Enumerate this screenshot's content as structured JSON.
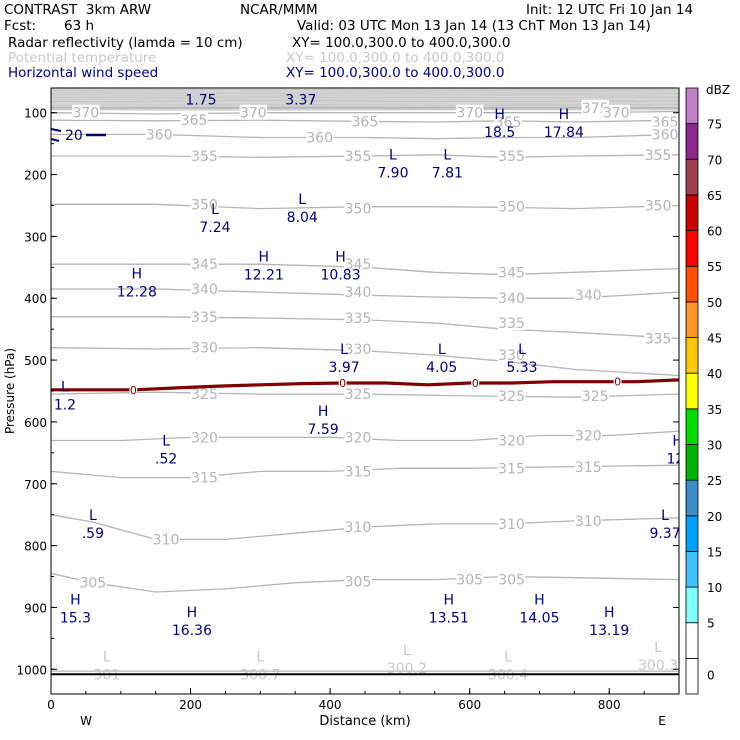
{
  "header": {
    "model": "CONTRAST  3km ARW",
    "org": "NCAR/MMM",
    "init": "Init: 12 UTC Fri 10 Jan 14",
    "fcst_label": "Fcst:",
    "fcst_value": "63 h",
    "valid": "Valid: 03 UTC Mon 13 Jan 14 (13 ChT Mon 13 Jan 14)",
    "fields": [
      {
        "name": "Radar reflectivity (lamda = 10 cm)",
        "xy": "XY= 100.0,300.0 to 400.0,300.0",
        "color": "#000000"
      },
      {
        "name": "Potential temperature",
        "xy": "XY= 100.0,300.0 to 400.0,300.0",
        "color": "#c8c8c8"
      },
      {
        "name": "Horizontal wind speed",
        "xy": "XY= 100.0,300.0 to 400.0,300.0",
        "color": "#000080"
      }
    ]
  },
  "chart_data": {
    "type": "cross-section",
    "xlabel": "Distance (km)",
    "ylabel": "Pressure (hPa)",
    "xlim": [
      0,
      900
    ],
    "ylim": [
      1040,
      60
    ],
    "xticks": [
      0,
      200,
      400,
      600,
      800
    ],
    "yticks": [
      100,
      200,
      300,
      400,
      500,
      600,
      700,
      800,
      900,
      1000
    ],
    "x_end_labels": {
      "left": "W",
      "right": "E"
    },
    "theta_contours": [
      {
        "value": 301,
        "points": [
          [
            0,
            1003
          ],
          [
            150,
            1003
          ],
          [
            300,
            1003
          ],
          [
            450,
            1003
          ],
          [
            600,
            1003
          ],
          [
            750,
            1003
          ],
          [
            900,
            1003
          ]
        ]
      },
      {
        "value": 305,
        "points": [
          [
            0,
            845
          ],
          [
            60,
            860
          ],
          [
            150,
            875
          ],
          [
            250,
            870
          ],
          [
            350,
            860
          ],
          [
            450,
            855
          ],
          [
            550,
            855
          ],
          [
            650,
            850
          ],
          [
            750,
            852
          ],
          [
            900,
            855
          ]
        ]
      },
      {
        "value": 310,
        "points": [
          [
            0,
            750
          ],
          [
            60,
            762
          ],
          [
            150,
            790
          ],
          [
            250,
            790
          ],
          [
            350,
            780
          ],
          [
            450,
            770
          ],
          [
            550,
            765
          ],
          [
            650,
            765
          ],
          [
            750,
            760
          ],
          [
            900,
            755
          ]
        ]
      },
      {
        "value": 315,
        "points": [
          [
            0,
            680
          ],
          [
            100,
            690
          ],
          [
            200,
            690
          ],
          [
            300,
            680
          ],
          [
            400,
            680
          ],
          [
            500,
            675
          ],
          [
            600,
            675
          ],
          [
            700,
            673
          ],
          [
            900,
            670
          ]
        ]
      },
      {
        "value": 320,
        "points": [
          [
            0,
            630
          ],
          [
            100,
            630
          ],
          [
            200,
            625
          ],
          [
            300,
            625
          ],
          [
            400,
            625
          ],
          [
            500,
            630
          ],
          [
            600,
            630
          ],
          [
            700,
            622
          ],
          [
            800,
            622
          ],
          [
            900,
            615
          ]
        ]
      },
      {
        "value": 325,
        "points": [
          [
            0,
            555
          ],
          [
            150,
            552
          ],
          [
            300,
            555
          ],
          [
            450,
            555
          ],
          [
            600,
            558
          ],
          [
            750,
            560
          ],
          [
            900,
            555
          ]
        ]
      },
      {
        "value": 330,
        "points": [
          [
            0,
            480
          ],
          [
            150,
            482
          ],
          [
            300,
            480
          ],
          [
            450,
            485
          ],
          [
            550,
            492
          ],
          [
            650,
            502
          ],
          [
            750,
            515
          ],
          [
            900,
            525
          ]
        ]
      },
      {
        "value": 335,
        "points": [
          [
            0,
            430
          ],
          [
            150,
            430
          ],
          [
            300,
            432
          ],
          [
            450,
            435
          ],
          [
            550,
            440
          ],
          [
            650,
            450
          ],
          [
            750,
            455
          ],
          [
            900,
            465
          ]
        ]
      },
      {
        "value": 340,
        "points": [
          [
            0,
            385
          ],
          [
            150,
            385
          ],
          [
            300,
            390
          ],
          [
            450,
            395
          ],
          [
            550,
            398
          ],
          [
            650,
            400
          ],
          [
            750,
            400
          ],
          [
            900,
            390
          ]
        ]
      },
      {
        "value": 345,
        "points": [
          [
            0,
            345
          ],
          [
            150,
            345
          ],
          [
            300,
            345
          ],
          [
            450,
            350
          ],
          [
            550,
            358
          ],
          [
            650,
            362
          ],
          [
            750,
            358
          ],
          [
            900,
            352
          ]
        ]
      },
      {
        "value": 350,
        "points": [
          [
            0,
            248
          ],
          [
            150,
            248
          ],
          [
            300,
            255
          ],
          [
            450,
            252
          ],
          [
            550,
            252
          ],
          [
            650,
            253
          ],
          [
            750,
            255
          ],
          [
            900,
            250
          ]
        ]
      },
      {
        "value": 355,
        "points": [
          [
            0,
            170
          ],
          [
            150,
            170
          ],
          [
            300,
            172
          ],
          [
            450,
            170
          ],
          [
            550,
            168
          ],
          [
            650,
            172
          ],
          [
            750,
            170
          ],
          [
            900,
            168
          ]
        ]
      },
      {
        "value": 360,
        "points": [
          [
            0,
            135
          ],
          [
            150,
            135
          ],
          [
            300,
            140
          ],
          [
            450,
            140
          ],
          [
            550,
            142
          ],
          [
            650,
            140
          ],
          [
            750,
            140
          ],
          [
            900,
            135
          ]
        ]
      },
      {
        "value": 365,
        "points": [
          [
            0,
            112
          ],
          [
            150,
            113
          ],
          [
            300,
            112
          ],
          [
            450,
            114
          ],
          [
            550,
            115
          ],
          [
            650,
            113
          ],
          [
            750,
            115
          ],
          [
            900,
            112
          ]
        ]
      },
      {
        "value": 370,
        "points": [
          [
            0,
            100
          ],
          [
            150,
            102
          ],
          [
            300,
            100
          ],
          [
            450,
            100
          ],
          [
            550,
            100
          ],
          [
            650,
            100
          ],
          [
            750,
            100
          ],
          [
            900,
            98
          ]
        ]
      },
      {
        "value": 375,
        "points": [
          [
            0,
            92
          ],
          [
            150,
            92
          ],
          [
            300,
            92
          ],
          [
            450,
            92
          ],
          [
            550,
            92
          ],
          [
            650,
            92
          ],
          [
            750,
            92
          ],
          [
            900,
            92
          ]
        ]
      }
    ],
    "theta_labels": [
      {
        "text": "370",
        "x": 50,
        "p": 100
      },
      {
        "text": "365",
        "x": 205,
        "p": 112
      },
      {
        "text": "370",
        "x": 290,
        "p": 100
      },
      {
        "text": "360",
        "x": 155,
        "p": 135
      },
      {
        "text": "360",
        "x": 385,
        "p": 140
      },
      {
        "text": "365",
        "x": 450,
        "p": 114
      },
      {
        "text": "370",
        "x": 600,
        "p": 100
      },
      {
        "text": "365",
        "x": 655,
        "p": 115
      },
      {
        "text": "375",
        "x": 780,
        "p": 92
      },
      {
        "text": "370",
        "x": 810,
        "p": 100
      },
      {
        "text": "365",
        "x": 880,
        "p": 115
      },
      {
        "text": "360",
        "x": 880,
        "p": 135
      },
      {
        "text": "355",
        "x": 220,
        "p": 170
      },
      {
        "text": "355",
        "x": 440,
        "p": 170
      },
      {
        "text": "355",
        "x": 660,
        "p": 170
      },
      {
        "text": "355",
        "x": 870,
        "p": 168
      },
      {
        "text": "350",
        "x": 220,
        "p": 248
      },
      {
        "text": "350",
        "x": 440,
        "p": 255
      },
      {
        "text": "350",
        "x": 660,
        "p": 252
      },
      {
        "text": "350",
        "x": 870,
        "p": 250
      },
      {
        "text": "345",
        "x": 220,
        "p": 345
      },
      {
        "text": "345",
        "x": 440,
        "p": 345
      },
      {
        "text": "345",
        "x": 660,
        "p": 358
      },
      {
        "text": "340",
        "x": 220,
        "p": 385
      },
      {
        "text": "340",
        "x": 440,
        "p": 390
      },
      {
        "text": "340",
        "x": 660,
        "p": 400
      },
      {
        "text": "340",
        "x": 770,
        "p": 395
      },
      {
        "text": "335",
        "x": 220,
        "p": 430
      },
      {
        "text": "335",
        "x": 440,
        "p": 432
      },
      {
        "text": "335",
        "x": 660,
        "p": 440
      },
      {
        "text": "335",
        "x": 870,
        "p": 465
      },
      {
        "text": "330",
        "x": 220,
        "p": 480
      },
      {
        "text": "330",
        "x": 440,
        "p": 482
      },
      {
        "text": "330",
        "x": 660,
        "p": 492
      },
      {
        "text": "325",
        "x": 220,
        "p": 555
      },
      {
        "text": "325",
        "x": 440,
        "p": 555
      },
      {
        "text": "325",
        "x": 660,
        "p": 558
      },
      {
        "text": "325",
        "x": 780,
        "p": 558
      },
      {
        "text": "320",
        "x": 220,
        "p": 625
      },
      {
        "text": "320",
        "x": 440,
        "p": 625
      },
      {
        "text": "320",
        "x": 660,
        "p": 630
      },
      {
        "text": "320",
        "x": 770,
        "p": 622
      },
      {
        "text": "315",
        "x": 220,
        "p": 690
      },
      {
        "text": "315",
        "x": 440,
        "p": 680
      },
      {
        "text": "315",
        "x": 660,
        "p": 675
      },
      {
        "text": "315",
        "x": 770,
        "p": 673
      },
      {
        "text": "310",
        "x": 165,
        "p": 790
      },
      {
        "text": "310",
        "x": 440,
        "p": 770
      },
      {
        "text": "310",
        "x": 660,
        "p": 765
      },
      {
        "text": "310",
        "x": 770,
        "p": 760
      },
      {
        "text": "305",
        "x": 60,
        "p": 860
      },
      {
        "text": "305",
        "x": 440,
        "p": 858
      },
      {
        "text": "305",
        "x": 600,
        "p": 855
      },
      {
        "text": "305",
        "x": 660,
        "p": 855
      }
    ],
    "freezing_line": {
      "value": 0,
      "points": [
        [
          0,
          548
        ],
        [
          60,
          548
        ],
        [
          120,
          548
        ],
        [
          180,
          545
        ],
        [
          240,
          542
        ],
        [
          300,
          540
        ],
        [
          360,
          538
        ],
        [
          420,
          537
        ],
        [
          480,
          537
        ],
        [
          540,
          540
        ],
        [
          600,
          537
        ],
        [
          660,
          537
        ],
        [
          720,
          535
        ],
        [
          780,
          535
        ],
        [
          840,
          535
        ],
        [
          900,
          532
        ]
      ]
    },
    "freezing_line_color": "#800000",
    "ground_pressure": 1008,
    "wind_markers": [
      {
        "kind": "L",
        "value": "1.75",
        "x": 215,
        "p": 72
      },
      {
        "kind": "H",
        "value": "3.37",
        "x": 358,
        "p": 72
      },
      {
        "kind": "H",
        "value": "18.5",
        "x": 643,
        "p": 125
      },
      {
        "kind": "H",
        "value": "17.84",
        "x": 735,
        "p": 125
      },
      {
        "kind": "L",
        "value": "7.90",
        "x": 490,
        "p": 190
      },
      {
        "kind": "L",
        "value": "7.81",
        "x": 568,
        "p": 190
      },
      {
        "kind": "L",
        "value": "8.04",
        "x": 360,
        "p": 262
      },
      {
        "kind": "L",
        "value": "7.24",
        "x": 235,
        "p": 278
      },
      {
        "kind": "H",
        "value": "12.21",
        "x": 305,
        "p": 355
      },
      {
        "kind": "H",
        "value": "10.83",
        "x": 415,
        "p": 355
      },
      {
        "kind": "H",
        "value": "12.28",
        "x": 123,
        "p": 383
      },
      {
        "kind": "L",
        "value": "3.97",
        "x": 420,
        "p": 505
      },
      {
        "kind": "L",
        "value": "4.05",
        "x": 560,
        "p": 505
      },
      {
        "kind": "L",
        "value": "5.33",
        "x": 675,
        "p": 505
      },
      {
        "kind": "L",
        "value": "1.2",
        "x": 20,
        "p": 565
      },
      {
        "kind": "H",
        "value": "7.59",
        "x": 390,
        "p": 605
      },
      {
        "kind": "L",
        "value": ".52",
        "x": 165,
        "p": 653
      },
      {
        "kind": "H",
        "value": "12.",
        "x": 898,
        "p": 653
      },
      {
        "kind": "L",
        "value": ".59",
        "x": 60,
        "p": 773
      },
      {
        "kind": "L",
        "value": "9.37",
        "x": 880,
        "p": 773
      },
      {
        "kind": "H",
        "value": "15.3",
        "x": 35,
        "p": 910
      },
      {
        "kind": "H",
        "value": "16.36",
        "x": 202,
        "p": 930
      },
      {
        "kind": "H",
        "value": "13.51",
        "x": 570,
        "p": 910
      },
      {
        "kind": "H",
        "value": "14.05",
        "x": 700,
        "p": 910
      },
      {
        "kind": "H",
        "value": "13.19",
        "x": 800,
        "p": 930
      }
    ],
    "theta_extrema": [
      {
        "kind": "L",
        "value": "301",
        "x": 80,
        "p": 1000
      },
      {
        "kind": "L",
        "value": "300.7",
        "x": 300,
        "p": 1000
      },
      {
        "kind": "L",
        "value": "300.2",
        "x": 510,
        "p": 990
      },
      {
        "kind": "L",
        "value": "300.4",
        "x": 655,
        "p": 1000
      },
      {
        "kind": "L",
        "value": "300.3",
        "x": 870,
        "p": 985
      }
    ],
    "wind_edge_label": {
      "value": "20",
      "x": 30,
      "p": 136
    },
    "colorbar": {
      "title": "dBZ",
      "levels": [
        {
          "label": "0",
          "color": "#ffffff"
        },
        {
          "label": "5",
          "color": "#ffffff"
        },
        {
          "label": "10",
          "color": "#80ffff"
        },
        {
          "label": "15",
          "color": "#40c0ff"
        },
        {
          "label": "20",
          "color": "#00a0ff"
        },
        {
          "label": "25",
          "color": "#3c8cc8"
        },
        {
          "label": "30",
          "color": "#00b400"
        },
        {
          "label": "35",
          "color": "#00dc00"
        },
        {
          "label": "40",
          "color": "#ffff00"
        },
        {
          "label": "45",
          "color": "#ffc800"
        },
        {
          "label": "50",
          "color": "#ff9628"
        },
        {
          "label": "55",
          "color": "#ff5000"
        },
        {
          "label": "60",
          "color": "#ff0000"
        },
        {
          "label": "65",
          "color": "#c80000"
        },
        {
          "label": "70",
          "color": "#a03c50"
        },
        {
          "label": "75",
          "color": "#8c288c"
        },
        {
          "label": "",
          "color": "#c080c8"
        }
      ]
    }
  }
}
